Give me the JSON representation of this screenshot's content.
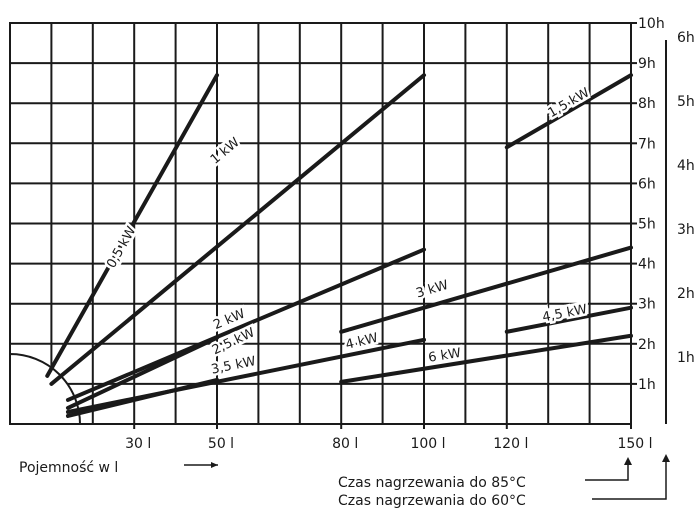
{
  "chart_data": {
    "type": "line",
    "title": "",
    "xlabel": "Pojemność w l",
    "ylabel": "",
    "x_ticks": [
      {
        "value": 30,
        "label": "30 l"
      },
      {
        "value": 50,
        "label": "50 l"
      },
      {
        "value": 80,
        "label": "80 l"
      },
      {
        "value": 100,
        "label": "100 l"
      },
      {
        "value": 120,
        "label": "120 l"
      },
      {
        "value": 150,
        "label": "150 l"
      }
    ],
    "y_ticks_85": [
      "1h",
      "2h",
      "3h",
      "4h",
      "5h",
      "6h",
      "7h",
      "8h",
      "9h",
      "10h"
    ],
    "y_ticks_60": [
      "1h",
      "2h",
      "3h",
      "4h",
      "5h",
      "6h"
    ],
    "axis_85_label": "Czas nagrzewania do 85°C",
    "axis_60_label": "Czas nagrzewania do 60°C",
    "xlim": [
      0,
      150
    ],
    "ylim": [
      0,
      10
    ],
    "grid": true,
    "series": [
      {
        "name": "0,5 kW",
        "points": [
          [
            9,
            1.2
          ],
          [
            50,
            8.7
          ]
        ]
      },
      {
        "name": "1 kW",
        "points": [
          [
            10,
            1.0
          ],
          [
            100,
            8.7
          ]
        ]
      },
      {
        "name": "1,5 kW",
        "points": [
          [
            120,
            6.9
          ],
          [
            150,
            8.7
          ]
        ]
      },
      {
        "name": "2 kW",
        "points": [
          [
            14,
            0.6
          ],
          [
            100,
            4.35
          ]
        ]
      },
      {
        "name": "2,5 kW",
        "points": [
          [
            14,
            0.4
          ],
          [
            50,
            2.15
          ]
        ]
      },
      {
        "name": "3 kW",
        "points": [
          [
            80,
            2.3
          ],
          [
            150,
            4.4
          ]
        ]
      },
      {
        "name": "3,5 kW",
        "points": [
          [
            14,
            0.3
          ],
          [
            100,
            2.1
          ]
        ]
      },
      {
        "name": "4 kW",
        "points": [
          [
            14,
            0.2
          ],
          [
            50,
            1.1
          ]
        ]
      },
      {
        "name": "4,5 kW",
        "points": [
          [
            120,
            2.3
          ],
          [
            150,
            2.9
          ]
        ]
      },
      {
        "name": "6 kW",
        "points": [
          [
            80,
            1.05
          ],
          [
            150,
            2.2
          ]
        ]
      }
    ],
    "labels": [
      {
        "text": "0,5 kW",
        "x": 27,
        "y": 4.4
      },
      {
        "text": "1 kW",
        "x": 52,
        "y": 6.8
      },
      {
        "text": "1,5 kW",
        "x": 135,
        "y": 8.0
      },
      {
        "text": "2 kW",
        "x": 53,
        "y": 2.6
      },
      {
        "text": "2,5 kW",
        "x": 54,
        "y": 2.05
      },
      {
        "text": "3 kW",
        "x": 102,
        "y": 3.35
      },
      {
        "text": "3,5 kW",
        "x": 54,
        "y": 1.45
      },
      {
        "text": "4 kW",
        "x": 85,
        "y": 2.05
      },
      {
        "text": "4,5 kW",
        "x": 134,
        "y": 2.75
      },
      {
        "text": "6 kW",
        "x": 105,
        "y": 1.7
      }
    ]
  }
}
